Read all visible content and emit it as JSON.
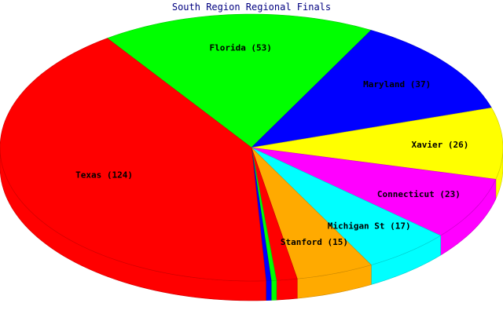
{
  "chart_data": {
    "type": "pie",
    "title": "South Region Regional Finals",
    "slices": [
      {
        "label": "Florida",
        "value": 53,
        "display": "Florida (53)",
        "color": "#00ff00"
      },
      {
        "label": "Maryland",
        "value": 37,
        "display": "Maryland (37)",
        "color": "#0000ff"
      },
      {
        "label": "Xavier",
        "value": 26,
        "display": "Xavier (26)",
        "color": "#ffff00"
      },
      {
        "label": "Connecticut",
        "value": 23,
        "display": "Connecticut (23)",
        "color": "#ff00ff"
      },
      {
        "label": "Michigan St",
        "value": 17,
        "display": "Michigan St (17)",
        "color": "#00ffff"
      },
      {
        "label": "Stanford",
        "value": 15,
        "display": "Stanford (15)",
        "color": "#ffaa00"
      },
      {
        "label": "",
        "value": 4,
        "display": "",
        "color": "#ff0000"
      },
      {
        "label": "",
        "value": 1,
        "display": "",
        "color": "#00ff00"
      },
      {
        "label": "",
        "value": 1,
        "display": "",
        "color": "#0000ff"
      },
      {
        "label": "Texas",
        "value": 124,
        "display": "Texas (124)",
        "color": "#ff0000"
      }
    ]
  }
}
